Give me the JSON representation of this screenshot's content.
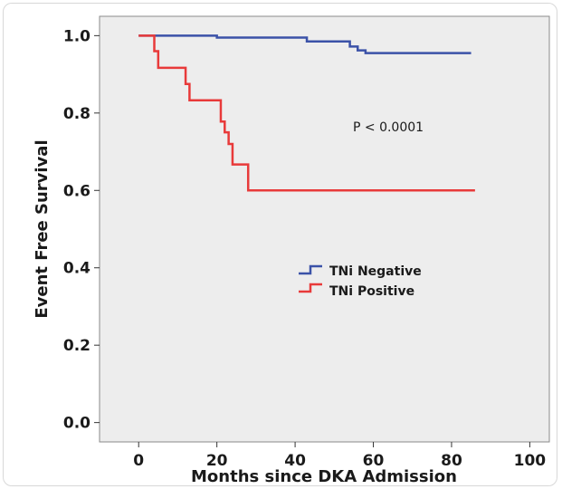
{
  "chart_data": {
    "type": "line",
    "step": true,
    "xlabel": "Months since DKA Admission",
    "ylabel": "Event Free Survival",
    "xlim": [
      -10,
      105
    ],
    "ylim": [
      -0.05,
      1.05
    ],
    "x_ticks": [
      0,
      20,
      40,
      60,
      80,
      100
    ],
    "y_ticks": [
      0.0,
      0.2,
      0.4,
      0.6,
      0.8,
      1.0
    ],
    "x_tick_labels": [
      "0",
      "20",
      "40",
      "60",
      "80",
      "100"
    ],
    "y_tick_labels": [
      "0.0",
      "0.2",
      "0.4",
      "0.6",
      "0.8",
      "1.0"
    ],
    "grid": false,
    "legend_position": "center",
    "annotation": "P < 0.0001",
    "background": "#ededed",
    "series": [
      {
        "name": "TNi Negative",
        "color": "#3b52a8",
        "x": [
          0,
          20,
          43,
          54,
          56,
          58,
          85
        ],
        "y": [
          1.0,
          0.995,
          0.985,
          0.972,
          0.962,
          0.955,
          0.955
        ]
      },
      {
        "name": "TNi Positive",
        "color": "#e83a3a",
        "x": [
          0,
          4,
          5,
          12,
          13,
          21,
          22,
          23,
          24,
          28,
          86
        ],
        "y": [
          1.0,
          0.96,
          0.917,
          0.875,
          0.833,
          0.778,
          0.75,
          0.72,
          0.667,
          0.6,
          0.6
        ]
      }
    ]
  }
}
